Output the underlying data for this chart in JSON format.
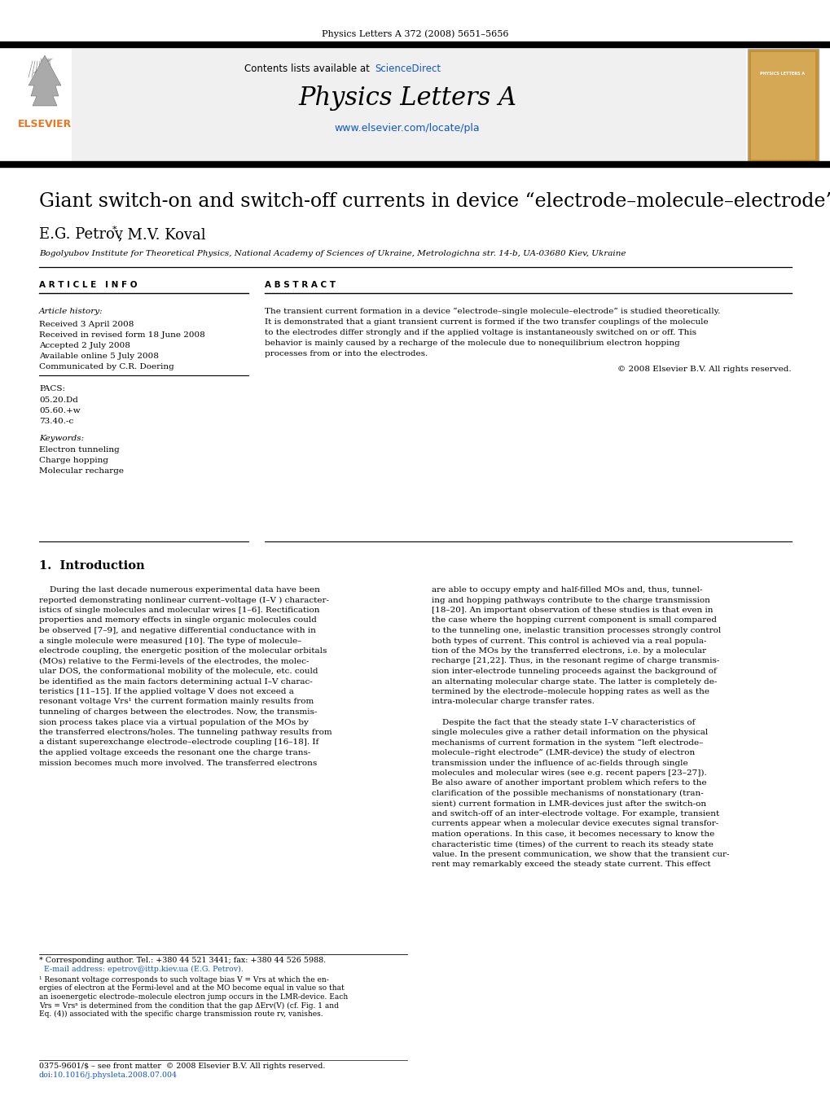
{
  "journal_header": "Physics Letters A 372 (2008) 5651–5656",
  "journal_name": "Physics Letters A",
  "journal_url": "www.elsevier.com/locate/pla",
  "sciencedirect_text": "Contents lists available at ScienceDirect",
  "title": "Giant switch-on and switch-off currents in device “electrode–molecule–electrode”",
  "authors": "E.G. Petrov*, M.V. Koval",
  "affiliation": "Bogolyubov Institute for Theoretical Physics, National Academy of Sciences of Ukraine, Metrologichna str. 14-b, UA-03680 Kiev, Ukraine",
  "article_info_label": "A R T I C L E   I N F O",
  "abstract_label": "A B S T R A C T",
  "article_history_label": "Article history:",
  "received": "Received 3 April 2008",
  "received_revised": "Received in revised form 18 June 2008",
  "accepted": "Accepted 2 July 2008",
  "available_online": "Available online 5 July 2008",
  "communicated": "Communicated by C.R. Doering",
  "pacs_label": "PACS:",
  "pacs1": "05.20.Dd",
  "pacs2": "05.60.+w",
  "pacs3": "73.40.-c",
  "keywords_label": "Keywords:",
  "keyword1": "Electron tunneling",
  "keyword2": "Charge hopping",
  "keyword3": "Molecular recharge",
  "abstract_lines": [
    "The transient current formation in a device “electrode–single molecule–electrode” is studied theoretically.",
    "It is demonstrated that a giant transient current is formed if the two transfer couplings of the molecule",
    "to the electrodes differ strongly and if the applied voltage is instantaneously switched on or off. This",
    "behavior is mainly caused by a recharge of the molecule due to nonequilibrium electron hopping",
    "processes from or into the electrodes."
  ],
  "copyright": "© 2008 Elsevier B.V. All rights reserved.",
  "section1_title": "1.  Introduction",
  "intro_col1_lines": [
    "    During the last decade numerous experimental data have been",
    "reported demonstrating nonlinear current–voltage (I–V ) character-",
    "istics of single molecules and molecular wires [1–6]. Rectification",
    "properties and memory effects in single organic molecules could",
    "be observed [7–9], and negative differential conductance with in",
    "a single molecule were measured [10]. The type of molecule–",
    "electrode coupling, the energetic position of the molecular orbitals",
    "(MOs) relative to the Fermi-levels of the electrodes, the molec-",
    "ular DOS, the conformational mobility of the molecule, etc. could",
    "be identified as the main factors determining actual I–V charac-",
    "teristics [11–15]. If the applied voltage V does not exceed a",
    "resonant voltage Vrs¹ the current formation mainly results from",
    "tunneling of charges between the electrodes. Now, the transmis-",
    "sion process takes place via a virtual population of the MOs by",
    "the transferred electrons/holes. The tunneling pathway results from",
    "a distant superexchange electrode–electrode coupling [16–18]. If",
    "the applied voltage exceeds the resonant one the charge trans-",
    "mission becomes much more involved. The transferred electrons"
  ],
  "intro_col2_lines": [
    "are able to occupy empty and half-filled MOs and, thus, tunnel-",
    "ing and hopping pathways contribute to the charge transmission",
    "[18–20]. An important observation of these studies is that even in",
    "the case where the hopping current component is small compared",
    "to the tunneling one, inelastic transition processes strongly control",
    "both types of current. This control is achieved via a real popula-",
    "tion of the MOs by the transferred electrons, i.e. by a molecular",
    "recharge [21,22]. Thus, in the resonant regime of charge transmis-",
    "sion inter-electrode tunneling proceeds against the background of",
    "an alternating molecular charge state. The latter is completely de-",
    "termined by the electrode–molecule hopping rates as well as the",
    "intra-molecular charge transfer rates.",
    "",
    "    Despite the fact that the steady state I–V characteristics of",
    "single molecules give a rather detail information on the physical",
    "mechanisms of current formation in the system “left electrode–",
    "molecule–right electrode” (LMR-device) the study of electron",
    "transmission under the influence of ac-fields through single",
    "molecules and molecular wires (see e.g. recent papers [23–27]).",
    "Be also aware of another important problem which refers to the",
    "clarification of the possible mechanisms of nonstationary (tran-",
    "sient) current formation in LMR-devices just after the switch-on",
    "and switch-off of an inter-electrode voltage. For example, transient",
    "currents appear when a molecular device executes signal transfor-",
    "mation operations. In this case, it becomes necessary to know the",
    "characteristic time (times) of the current to reach its steady state",
    "value. In the present communication, we show that the transient cur-",
    "rent may remarkably exceed the steady state current. This effect"
  ],
  "footnote1": "* Corresponding author. Tel.: +380 44 521 3441; fax: +380 44 526 5988.",
  "footnote2": "  E-mail address: epetrov@ittp.kiev.ua (E.G. Petrov).",
  "footnote3_lines": [
    "¹ Resonant voltage corresponds to such voltage bias V = Vrs at which the en-",
    "ergies of electron at the Fermi-level and at the MO become equal in value so that",
    "an isoenergetic electrode–molecule electron jump occurs in the LMR-device. Each",
    "Vrs = Vrsⁿ is determined from the condition that the gap ΔErv(V) (cf. Fig. 1 and",
    "Eq. (4)) associated with the specific charge transmission route rv, vanishes."
  ],
  "footer_line1": "0375-9601/$ – see front matter  © 2008 Elsevier B.V. All rights reserved.",
  "footer_line2": "doi:10.1016/j.physleta.2008.07.004",
  "elsevier_color": "#E87722",
  "link_color": "#1155CC",
  "black": "#000000",
  "white": "#ffffff",
  "light_gray": "#f0f0f0",
  "cover_color": "#C8902A"
}
